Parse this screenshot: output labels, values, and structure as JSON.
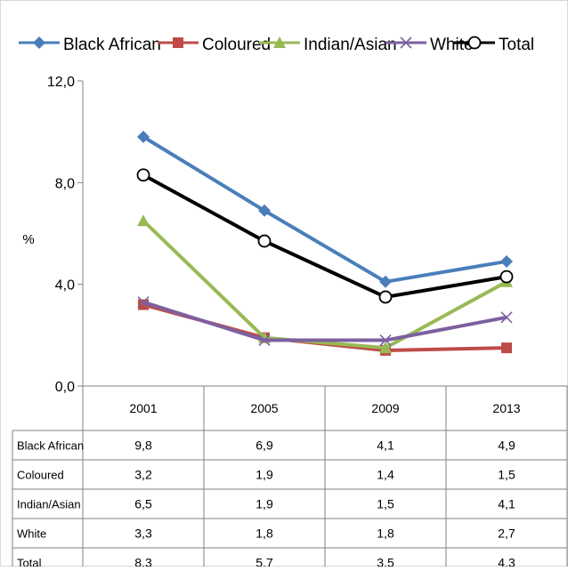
{
  "chart_data": {
    "type": "line",
    "categories": [
      "2001",
      "2005",
      "2009",
      "2013"
    ],
    "ylabel": "%",
    "ylim": [
      0,
      12
    ],
    "yticks": [
      "0,0",
      "4,0",
      "8,0",
      "12,0"
    ],
    "legend_position": "top",
    "grid": false,
    "data_table": true,
    "series": [
      {
        "name": "Black African",
        "values": [
          9.8,
          6.9,
          4.1,
          4.9
        ],
        "labels": [
          "9,8",
          "6,9",
          "4,1",
          "4,9"
        ],
        "color": "#4a7ebb",
        "marker": "diamond"
      },
      {
        "name": "Coloured",
        "values": [
          3.2,
          1.9,
          1.4,
          1.5
        ],
        "labels": [
          "3,2",
          "1,9",
          "1,4",
          "1,5"
        ],
        "color": "#be4b48",
        "marker": "square"
      },
      {
        "name": "Indian/Asian",
        "values": [
          6.5,
          1.9,
          1.5,
          4.1
        ],
        "labels": [
          "6,5",
          "1,9",
          "1,5",
          "4,1"
        ],
        "color": "#98b954",
        "marker": "triangle"
      },
      {
        "name": "White",
        "values": [
          3.3,
          1.8,
          1.8,
          2.7
        ],
        "labels": [
          "3,3",
          "1,8",
          "1,8",
          "2,7"
        ],
        "color": "#7d60a0",
        "marker": "x"
      },
      {
        "name": "Total",
        "values": [
          8.3,
          5.7,
          3.5,
          4.3
        ],
        "labels": [
          "8,3",
          "5,7",
          "3,5",
          "4,3"
        ],
        "color": "#000000",
        "marker": "circle"
      }
    ]
  }
}
